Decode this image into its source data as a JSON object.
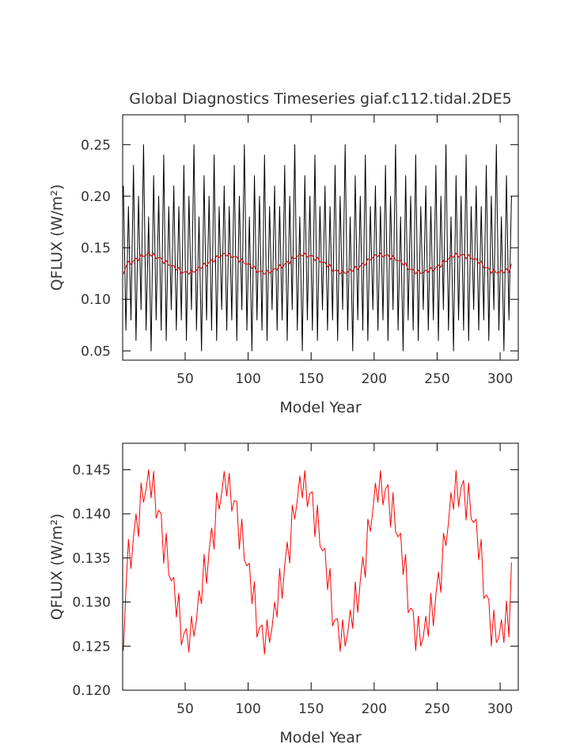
{
  "chart_data": [
    {
      "type": "line",
      "title": "Global Diagnostics Timeseries giaf.c112.tidal.2DE5",
      "xlabel": "Model Year",
      "ylabel": "QFLUX (W/m²)",
      "xlim": [
        0.4,
        314.4
      ],
      "xticks": [
        50,
        100,
        150,
        200,
        250,
        300
      ],
      "ylim": [
        0.041,
        0.279
      ],
      "yticks": [
        0.05,
        {
          "value": 0.1,
          "label": "0.10"
        },
        0.15,
        {
          "value": 0.2,
          "label": "0.20"
        },
        0.25
      ],
      "x": [
        1,
        3,
        5,
        7,
        9,
        11,
        13,
        15,
        17,
        19,
        21,
        23,
        25,
        27,
        29,
        31,
        33,
        35,
        37,
        39,
        41,
        43,
        45,
        47,
        49,
        51,
        53,
        55,
        57,
        59,
        61,
        63,
        65,
        67,
        69,
        71,
        73,
        75,
        77,
        79,
        81,
        83,
        85,
        87,
        89,
        91,
        93,
        95,
        97,
        99,
        101,
        103,
        105,
        107,
        109,
        111,
        113,
        115,
        117,
        119,
        121,
        123,
        125,
        127,
        129,
        131,
        133,
        135,
        137,
        139,
        141,
        143,
        145,
        147,
        149,
        151,
        153,
        155,
        157,
        159,
        161,
        163,
        165,
        167,
        169,
        171,
        173,
        175,
        177,
        179,
        181,
        183,
        185,
        187,
        189,
        191,
        193,
        195,
        197,
        199,
        201,
        203,
        205,
        207,
        209,
        211,
        213,
        215,
        217,
        219,
        221,
        223,
        225,
        227,
        229,
        231,
        233,
        235,
        237,
        239,
        241,
        243,
        245,
        247,
        249,
        251,
        253,
        255,
        257,
        259,
        261,
        263,
        265,
        267,
        269,
        271,
        273,
        275,
        277,
        279,
        281,
        283,
        285,
        287,
        289,
        291,
        293,
        295,
        297,
        299,
        301,
        303,
        305,
        307,
        309
      ],
      "series": [
        {
          "color": "#000000",
          "values": [
            0.21,
            0.07,
            0.19,
            0.08,
            0.23,
            0.06,
            0.2,
            0.09,
            0.25,
            0.07,
            0.18,
            0.05,
            0.22,
            0.08,
            0.2,
            0.07,
            0.24,
            0.06,
            0.19,
            0.09,
            0.21,
            0.07,
            0.19,
            0.08,
            0.23,
            0.06,
            0.2,
            0.09,
            0.25,
            0.07,
            0.18,
            0.05,
            0.22,
            0.08,
            0.2,
            0.07,
            0.24,
            0.06,
            0.19,
            0.09,
            0.21,
            0.07,
            0.19,
            0.08,
            0.23,
            0.06,
            0.2,
            0.09,
            0.25,
            0.07,
            0.18,
            0.05,
            0.22,
            0.08,
            0.2,
            0.07,
            0.24,
            0.06,
            0.19,
            0.09,
            0.21,
            0.07,
            0.19,
            0.08,
            0.23,
            0.06,
            0.2,
            0.09,
            0.25,
            0.07,
            0.18,
            0.05,
            0.22,
            0.08,
            0.2,
            0.07,
            0.24,
            0.06,
            0.19,
            0.09,
            0.21,
            0.07,
            0.19,
            0.08,
            0.23,
            0.06,
            0.2,
            0.09,
            0.25,
            0.07,
            0.18,
            0.05,
            0.22,
            0.08,
            0.2,
            0.07,
            0.24,
            0.06,
            0.19,
            0.09,
            0.21,
            0.07,
            0.19,
            0.08,
            0.23,
            0.06,
            0.2,
            0.09,
            0.25,
            0.07,
            0.18,
            0.05,
            0.22,
            0.08,
            0.2,
            0.07,
            0.24,
            0.06,
            0.19,
            0.09,
            0.21,
            0.07,
            0.19,
            0.08,
            0.23,
            0.06,
            0.2,
            0.09,
            0.25,
            0.07,
            0.18,
            0.05,
            0.22,
            0.08,
            0.2,
            0.07,
            0.24,
            0.06,
            0.19,
            0.09,
            0.21,
            0.07,
            0.19,
            0.08,
            0.23,
            0.06,
            0.2,
            0.09,
            0.25,
            0.07,
            0.18,
            0.05,
            0.22,
            0.08,
            0.2
          ]
        },
        {
          "color": "#dd0000",
          "values": [
            0.1245,
            0.1314,
            0.1371,
            0.1338,
            0.1374,
            0.14,
            0.1374,
            0.1435,
            0.1413,
            0.1428,
            0.145,
            0.1418,
            0.1448,
            0.1395,
            0.1404,
            0.14,
            0.1344,
            0.1378,
            0.1331,
            0.1324,
            0.1328,
            0.1283,
            0.131,
            0.1251,
            0.1264,
            0.127,
            0.1243,
            0.1284,
            0.1261,
            0.128,
            0.1313,
            0.1298,
            0.1354,
            0.1321,
            0.1358,
            0.1384,
            0.136,
            0.1424,
            0.1405,
            0.1423,
            0.1448,
            0.142,
            0.1446,
            0.1403,
            0.1415,
            0.1414,
            0.136,
            0.1394,
            0.1348,
            0.1341,
            0.1344,
            0.1298,
            0.1323,
            0.126,
            0.1271,
            0.1274,
            0.1241,
            0.128,
            0.1254,
            0.1271,
            0.13,
            0.1283,
            0.1338,
            0.1304,
            0.1341,
            0.1368,
            0.1344,
            0.141,
            0.1394,
            0.1415,
            0.1443,
            0.1418,
            0.1449,
            0.1408,
            0.1423,
            0.1425,
            0.1374,
            0.141,
            0.1364,
            0.1358,
            0.1361,
            0.1314,
            0.1338,
            0.1273,
            0.128,
            0.1281,
            0.1244,
            0.128,
            0.125,
            0.1264,
            0.1291,
            0.127,
            0.1323,
            0.1288,
            0.1324,
            0.1351,
            0.1328,
            0.1394,
            0.138,
            0.1404,
            0.1435,
            0.1413,
            0.1449,
            0.141,
            0.1428,
            0.1433,
            0.1385,
            0.1424,
            0.138,
            0.1374,
            0.1378,
            0.1331,
            0.1354,
            0.1288,
            0.1293,
            0.129,
            0.1245,
            0.1284,
            0.125,
            0.126,
            0.1284,
            0.1261,
            0.131,
            0.1273,
            0.1308,
            0.1334,
            0.1311,
            0.1378,
            0.1364,
            0.139,
            0.1424,
            0.1405,
            0.1449,
            0.1408,
            0.143,
            0.1438,
            0.1393,
            0.1435,
            0.1394,
            0.139,
            0.1394,
            0.1348,
            0.1371,
            0.1304,
            0.1308,
            0.1303,
            0.125,
            0.1291,
            0.1254,
            0.126,
            0.128,
            0.1254,
            0.1301,
            0.126,
            0.1345
          ]
        }
      ]
    },
    {
      "type": "line",
      "xlabel": "Model Year",
      "ylabel": "QFLUX (W/m²)",
      "xlim": [
        0.4,
        314.4
      ],
      "xticks": [
        50,
        100,
        150,
        200,
        250,
        300
      ],
      "ylim": [
        0.12,
        0.148
      ],
      "yticks": [
        {
          "value": 0.12,
          "label": "0.120"
        },
        0.125,
        {
          "value": 0.13,
          "label": "0.130"
        },
        0.135,
        {
          "value": 0.14,
          "label": "0.140"
        },
        0.145
      ],
      "x": [
        1,
        3,
        5,
        7,
        9,
        11,
        13,
        15,
        17,
        19,
        21,
        23,
        25,
        27,
        29,
        31,
        33,
        35,
        37,
        39,
        41,
        43,
        45,
        47,
        49,
        51,
        53,
        55,
        57,
        59,
        61,
        63,
        65,
        67,
        69,
        71,
        73,
        75,
        77,
        79,
        81,
        83,
        85,
        87,
        89,
        91,
        93,
        95,
        97,
        99,
        101,
        103,
        105,
        107,
        109,
        111,
        113,
        115,
        117,
        119,
        121,
        123,
        125,
        127,
        129,
        131,
        133,
        135,
        137,
        139,
        141,
        143,
        145,
        147,
        149,
        151,
        153,
        155,
        157,
        159,
        161,
        163,
        165,
        167,
        169,
        171,
        173,
        175,
        177,
        179,
        181,
        183,
        185,
        187,
        189,
        191,
        193,
        195,
        197,
        199,
        201,
        203,
        205,
        207,
        209,
        211,
        213,
        215,
        217,
        219,
        221,
        223,
        225,
        227,
        229,
        231,
        233,
        235,
        237,
        239,
        241,
        243,
        245,
        247,
        249,
        251,
        253,
        255,
        257,
        259,
        261,
        263,
        265,
        267,
        269,
        271,
        273,
        275,
        277,
        279,
        281,
        283,
        285,
        287,
        289,
        291,
        293,
        295,
        297,
        299,
        301,
        303,
        305,
        307,
        309
      ],
      "series": [
        {
          "color": "#ff0000",
          "values": [
            0.1245,
            0.1314,
            0.1371,
            0.1338,
            0.1374,
            0.14,
            0.1374,
            0.1435,
            0.1413,
            0.1428,
            0.145,
            0.1418,
            0.1448,
            0.1395,
            0.1404,
            0.14,
            0.1344,
            0.1378,
            0.1331,
            0.1324,
            0.1328,
            0.1283,
            0.131,
            0.1251,
            0.1264,
            0.127,
            0.1243,
            0.1284,
            0.1261,
            0.128,
            0.1313,
            0.1298,
            0.1354,
            0.1321,
            0.1358,
            0.1384,
            0.136,
            0.1424,
            0.1405,
            0.1423,
            0.1448,
            0.142,
            0.1446,
            0.1403,
            0.1415,
            0.1414,
            0.136,
            0.1394,
            0.1348,
            0.1341,
            0.1344,
            0.1298,
            0.1323,
            0.126,
            0.1271,
            0.1274,
            0.1241,
            0.128,
            0.1254,
            0.1271,
            0.13,
            0.1283,
            0.1338,
            0.1304,
            0.1341,
            0.1368,
            0.1344,
            0.141,
            0.1394,
            0.1415,
            0.1443,
            0.1418,
            0.1449,
            0.1408,
            0.1423,
            0.1425,
            0.1374,
            0.141,
            0.1364,
            0.1358,
            0.1361,
            0.1314,
            0.1338,
            0.1273,
            0.128,
            0.1281,
            0.1244,
            0.128,
            0.125,
            0.1264,
            0.1291,
            0.127,
            0.1323,
            0.1288,
            0.1324,
            0.1351,
            0.1328,
            0.1394,
            0.138,
            0.1404,
            0.1435,
            0.1413,
            0.1449,
            0.141,
            0.1428,
            0.1433,
            0.1385,
            0.1424,
            0.138,
            0.1374,
            0.1378,
            0.1331,
            0.1354,
            0.1288,
            0.1293,
            0.129,
            0.1245,
            0.1284,
            0.125,
            0.126,
            0.1284,
            0.1261,
            0.131,
            0.1273,
            0.1308,
            0.1334,
            0.1311,
            0.1378,
            0.1364,
            0.139,
            0.1424,
            0.1405,
            0.1449,
            0.1408,
            0.143,
            0.1438,
            0.1393,
            0.1435,
            0.1394,
            0.139,
            0.1394,
            0.1348,
            0.1371,
            0.1304,
            0.1308,
            0.1303,
            0.125,
            0.1291,
            0.1254,
            0.126,
            0.128,
            0.1254,
            0.1301,
            0.126,
            0.1345
          ]
        }
      ]
    }
  ]
}
